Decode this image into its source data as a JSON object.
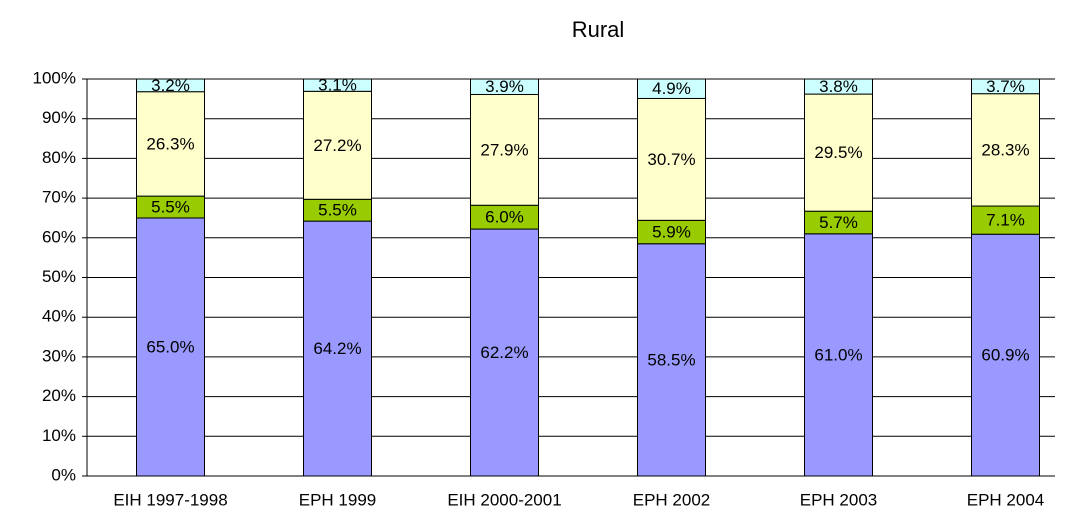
{
  "chart_data": {
    "type": "stacked_bar",
    "title": "Rural",
    "categories": [
      "EIH 1997-1998",
      "EPH 1999",
      "EIH 2000-2001",
      "EPH 2002",
      "EPH 2003",
      "EPH 2004"
    ],
    "series": [
      {
        "color": "#9999ff",
        "values": [
          65.0,
          64.2,
          62.2,
          58.5,
          61.0,
          60.9
        ],
        "value_labels": [
          "65.0%",
          "64.2%",
          "62.2%",
          "58.5%",
          "61.0%",
          "60.9%"
        ]
      },
      {
        "color": "#99cc00",
        "values": [
          5.5,
          5.5,
          6.0,
          5.9,
          5.7,
          7.1
        ],
        "value_labels": [
          "5.5%",
          "5.5%",
          "6.0%",
          "5.9%",
          "5.7%",
          "7.1%"
        ]
      },
      {
        "color": "#ffffcc",
        "values": [
          26.3,
          27.2,
          27.9,
          30.7,
          29.5,
          28.3
        ],
        "value_labels": [
          "26.3%",
          "27.2%",
          "27.9%",
          "30.7%",
          "29.5%",
          "28.3%"
        ]
      },
      {
        "color": "#ccffff",
        "values": [
          3.2,
          3.1,
          3.9,
          4.9,
          3.8,
          3.7
        ],
        "value_labels": [
          "3.2%",
          "3.1%",
          "3.9%",
          "4.9%",
          "3.8%",
          "3.7%"
        ]
      }
    ],
    "ylim": [
      0,
      100
    ],
    "yticks": [
      {
        "value": 0,
        "label": "0%"
      },
      {
        "value": 10,
        "label": "10%"
      },
      {
        "value": 20,
        "label": "20%"
      },
      {
        "value": 30,
        "label": "30%"
      },
      {
        "value": 40,
        "label": "40%"
      },
      {
        "value": 50,
        "label": "50%"
      },
      {
        "value": 60,
        "label": "60%"
      },
      {
        "value": 70,
        "label": "70%"
      },
      {
        "value": 80,
        "label": "80%"
      },
      {
        "value": 90,
        "label": "90%"
      },
      {
        "value": 100,
        "label": "100%"
      }
    ],
    "grid": true
  }
}
